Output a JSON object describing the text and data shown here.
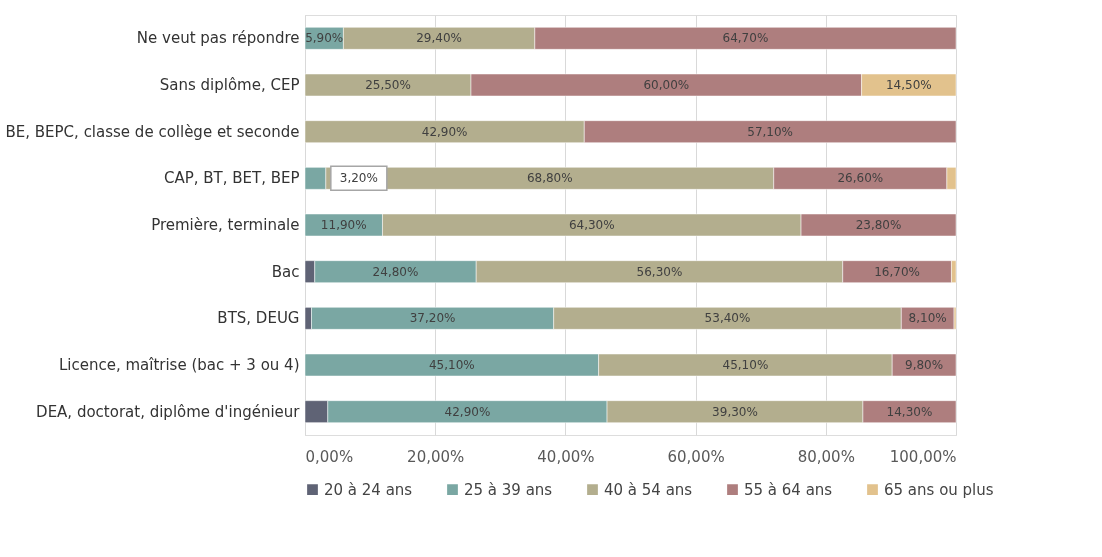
{
  "chart_data": {
    "type": "bar",
    "orientation": "horizontal",
    "stacked": true,
    "categories": [
      "Ne veut pas répondre",
      "Sans diplôme, CEP",
      "BE, BEPC, classe de collège et seconde",
      "CAP, BT, BET, BEP",
      "Première, terminale",
      "Bac",
      "BTS, DEUG",
      "Licence, maîtrise (bac + 3 ou 4)",
      "DEA, doctorat, diplôme d'ingénieur"
    ],
    "series": [
      {
        "name": "20 à 24 ans",
        "color": "#5f6375",
        "values": [
          null,
          null,
          null,
          null,
          null,
          1.5,
          1.0,
          null,
          3.5
        ],
        "value_labels": [
          null,
          null,
          null,
          null,
          null,
          null,
          null,
          null,
          null
        ]
      },
      {
        "name": "25 à 39 ans",
        "color": "#7aa7a3",
        "values": [
          5.9,
          null,
          null,
          3.2,
          11.9,
          24.8,
          37.2,
          45.1,
          42.9
        ],
        "value_labels": [
          "5,90%",
          null,
          null,
          "3,20%",
          "11,90%",
          "24,80%",
          "37,20%",
          "45,10%",
          "42,90%"
        ]
      },
      {
        "name": "40 à 54 ans",
        "color": "#b3ae8e",
        "values": [
          29.4,
          25.5,
          42.9,
          68.8,
          64.3,
          56.3,
          53.4,
          45.1,
          39.3
        ],
        "value_labels": [
          "29,40%",
          "25,50%",
          "42,90%",
          "68,80%",
          "64,30%",
          "56,30%",
          "53,40%",
          "45,10%",
          "39,30%"
        ]
      },
      {
        "name": "55 à 64 ans",
        "color": "#ae7e7e",
        "values": [
          64.7,
          60.0,
          57.1,
          26.6,
          23.8,
          16.7,
          8.1,
          9.8,
          14.3
        ],
        "value_labels": [
          "64,70%",
          "60,00%",
          "57,10%",
          "26,60%",
          "23,80%",
          "16,70%",
          "8,10%",
          "9,80%",
          "14,30%"
        ]
      },
      {
        "name": "65 ans ou plus",
        "color": "#e2c28d",
        "values": [
          null,
          14.5,
          null,
          1.4,
          null,
          0.7,
          0.3,
          null,
          null
        ],
        "value_labels": [
          null,
          "14,50%",
          null,
          null,
          null,
          null,
          null,
          null,
          null
        ]
      }
    ],
    "xlim": [
      0,
      100
    ],
    "xticks": [
      {
        "value": 0,
        "label": "0,00%"
      },
      {
        "value": 20,
        "label": "20,00%"
      },
      {
        "value": 40,
        "label": "40,00%"
      },
      {
        "value": 60,
        "label": "60,00%"
      },
      {
        "value": 80,
        "label": "80,00%"
      },
      {
        "value": 100,
        "label": "100,00%"
      }
    ],
    "grid": "x",
    "legend": "bottom"
  }
}
